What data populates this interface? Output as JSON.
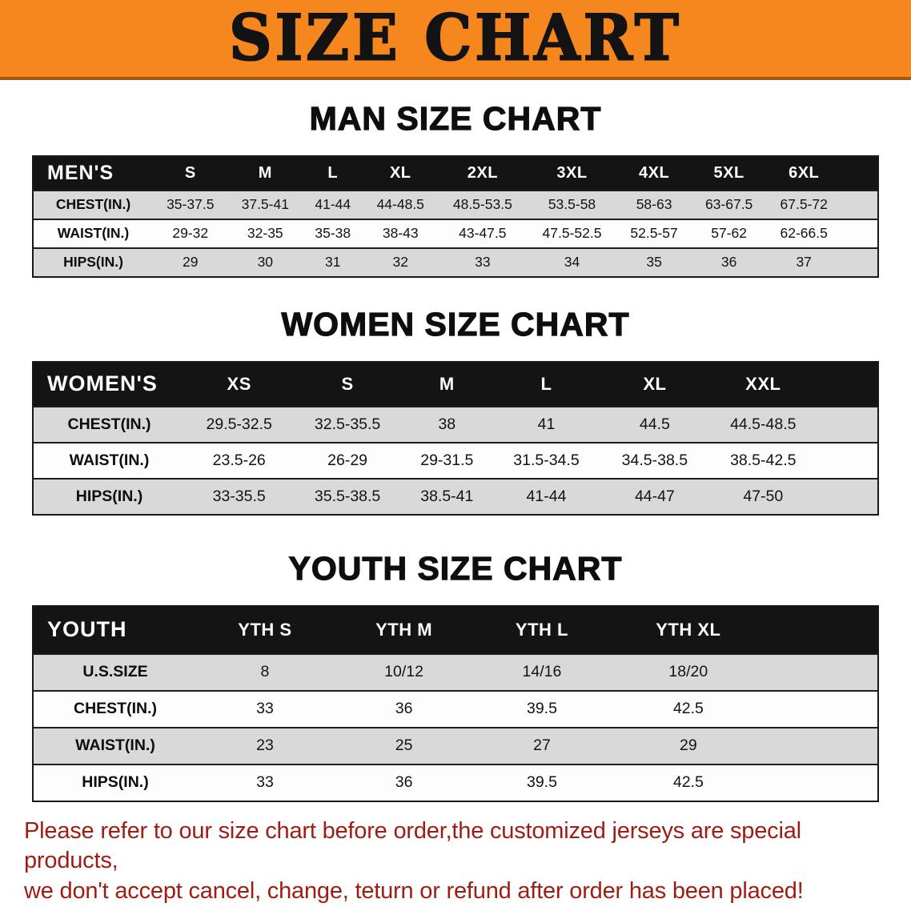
{
  "banner": {
    "title": "SIZE CHART"
  },
  "colors": {
    "banner_orange": "#f6871f",
    "table_header_black": "#141414",
    "row_gray": "#d9d9d9",
    "disclaimer_red": "#9e1c12"
  },
  "sections": [
    {
      "heading": "MAN SIZE CHART",
      "table": {
        "header": [
          "MEN'S",
          "S",
          "M",
          "L",
          "XL",
          "2XL",
          "3XL",
          "4XL",
          "5XL",
          "6XL"
        ],
        "rows": [
          {
            "label": "CHEST(IN.)",
            "values": [
              "35-37.5",
              "37.5-41",
              "41-44",
              "44-48.5",
              "48.5-53.5",
              "53.5-58",
              "58-63",
              "63-67.5",
              "67.5-72"
            ]
          },
          {
            "label": "WAIST(IN.)",
            "values": [
              "29-32",
              "32-35",
              "35-38",
              "38-43",
              "43-47.5",
              "47.5-52.5",
              "52.5-57",
              "57-62",
              "62-66.5"
            ]
          },
          {
            "label": "HIPS(IN.)",
            "values": [
              "29",
              "30",
              "31",
              "32",
              "33",
              "34",
              "35",
              "36",
              "37"
            ]
          }
        ]
      }
    },
    {
      "heading": "WOMEN SIZE CHART",
      "table": {
        "header": [
          "WOMEN'S",
          "XS",
          "S",
          "M",
          "L",
          "XL",
          "XXL"
        ],
        "rows": [
          {
            "label": "CHEST(IN.)",
            "values": [
              "29.5-32.5",
              "32.5-35.5",
              "38",
              "41",
              "44.5",
              "44.5-48.5"
            ]
          },
          {
            "label": "WAIST(IN.)",
            "values": [
              "23.5-26",
              "26-29",
              "29-31.5",
              "31.5-34.5",
              "34.5-38.5",
              "38.5-42.5"
            ]
          },
          {
            "label": "HIPS(IN.)",
            "values": [
              "33-35.5",
              "35.5-38.5",
              "38.5-41",
              "41-44",
              "44-47",
              "47-50"
            ]
          }
        ]
      }
    },
    {
      "heading": "YOUTH SIZE CHART",
      "table": {
        "header": [
          "YOUTH",
          "YTH S",
          "YTH M",
          "YTH L",
          "YTH XL"
        ],
        "rows": [
          {
            "label": "U.S.SIZE",
            "values": [
              "8",
              "10/12",
              "14/16",
              "18/20"
            ]
          },
          {
            "label": "CHEST(IN.)",
            "values": [
              "33",
              "36",
              "39.5",
              "42.5"
            ]
          },
          {
            "label": "WAIST(IN.)",
            "values": [
              "23",
              "25",
              "27",
              "29"
            ]
          },
          {
            "label": "HIPS(IN.)",
            "values": [
              "33",
              "36",
              "39.5",
              "42.5"
            ]
          }
        ]
      }
    }
  ],
  "disclaimer": {
    "lines": [
      "Please refer to our size chart before order,the customized jerseys are special products,",
      "we don't accept cancel, change, teturn or refund after order has been placed!"
    ]
  }
}
